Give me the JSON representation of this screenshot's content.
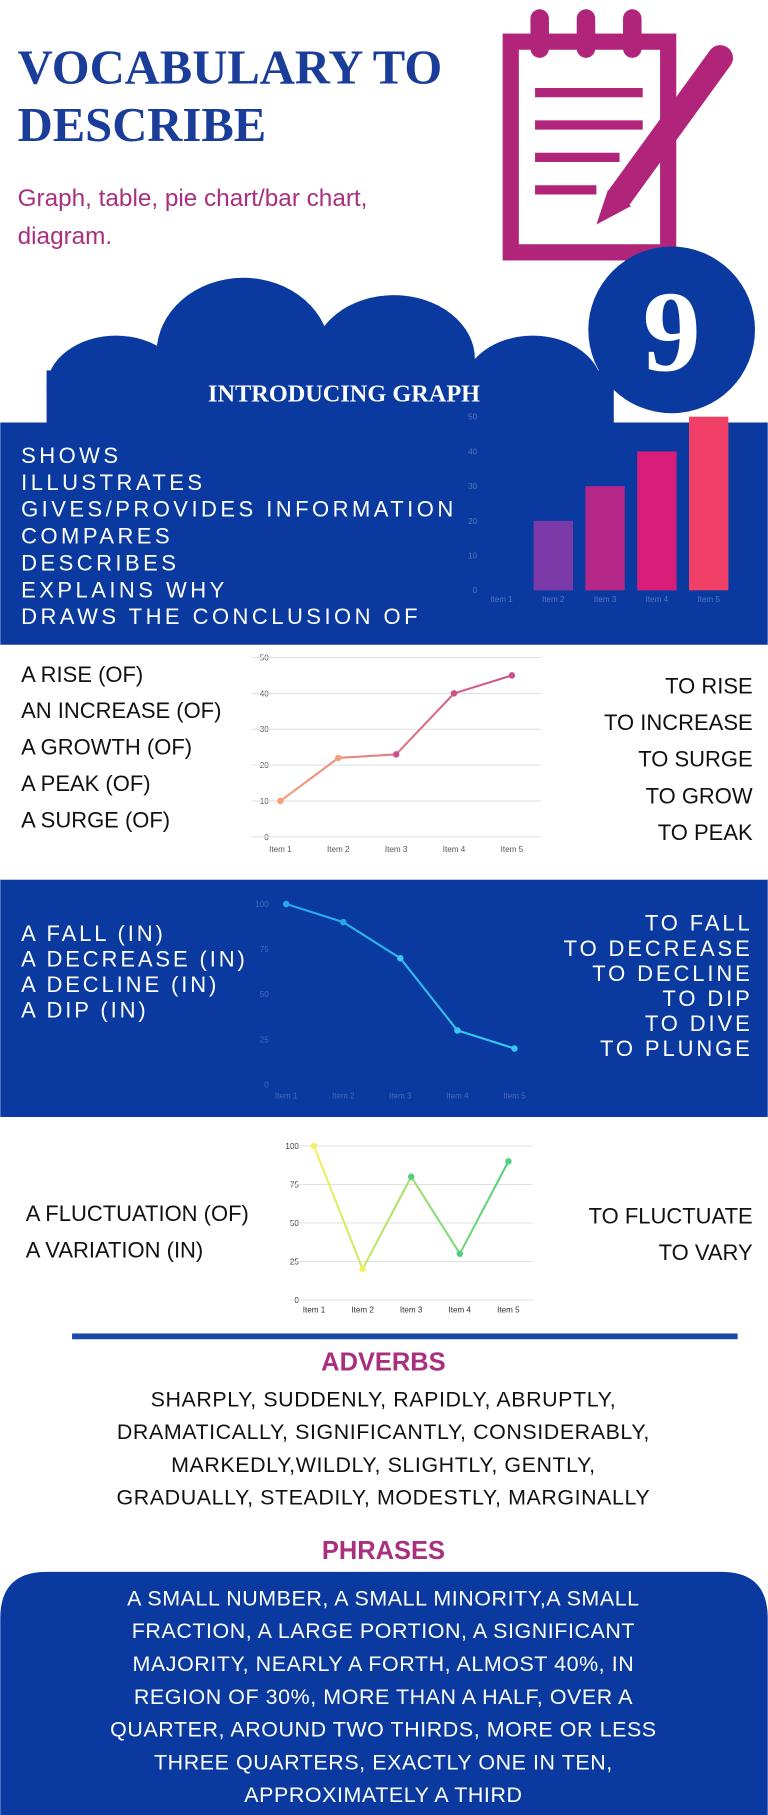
{
  "header": {
    "title": [
      "VOCABULARY TO",
      "DESCRIBE"
    ],
    "subtitle": [
      "Graph, table, pie chart/bar chart,",
      "diagram."
    ],
    "number": "9"
  },
  "intro": {
    "heading": "INTRODUCING GRAPH",
    "verbs": [
      "SHOWS",
      "ILLUSTRATES",
      "GIVES/PROVIDES INFORMATION",
      "COMPARES",
      "DESCRIBES",
      "EXPLAINS WHY",
      "DRAWS THE CONCLUSION OF"
    ]
  },
  "rise": {
    "nouns": [
      "A RISE (OF)",
      "AN INCREASE (OF)",
      "A GROWTH (OF)",
      "A PEAK (OF)",
      "A SURGE (OF)"
    ],
    "verbs": [
      "TO RISE",
      "TO INCREASE",
      "TO SURGE",
      "TO GROW",
      "TO PEAK"
    ]
  },
  "fall": {
    "nouns": [
      "A FALL (IN)",
      "A DECREASE (IN)",
      "A DECLINE (IN)",
      "A DIP (IN)"
    ],
    "verbs": [
      "TO FALL",
      "TO DECREASE",
      "TO DECLINE",
      "TO DIP",
      "TO DIVE",
      "TO PLUNGE"
    ]
  },
  "fluctuate": {
    "nouns": [
      "A FLUCTUATION (OF)",
      "A VARIATION (IN)"
    ],
    "verbs": [
      "TO FLUCTUATE",
      "TO VARY"
    ]
  },
  "adverbs": {
    "heading": "ADVERBS",
    "lines": [
      "SHARPLY, SUDDENLY, RAPIDLY, ABRUPTLY,",
      "DRAMATICALLY, SIGNIFICANTLY, CONSIDERABLY,",
      "MARKEDLY,WILDLY, SLIGHTLY, GENTLY,",
      "GRADUALLY, STEADILY, MODESTLY, MARGINALLY"
    ]
  },
  "phrases": {
    "heading": "PHRASES",
    "lines": [
      "A SMALL NUMBER, A SMALL MINORITY,A SMALL",
      "FRACTION, A LARGE PORTION, A SIGNIFICANT",
      "MAJORITY, NEARLY A  FORTH, ALMOST 40%, IN",
      "REGION OF 30%, MORE THAN A HALF, OVER A",
      "QUARTER, AROUND TWO THIRDS, MORE OR LESS",
      "THREE QUARTERS, EXACTLY ONE IN TEN,",
      "APPROXIMATELY A THIRD"
    ]
  },
  "charts": [
    {
      "type": "bar",
      "categories": [
        "Item 1",
        "Item 2",
        "Item 3",
        "Item 4",
        "Item 5"
      ],
      "values": [
        0,
        20,
        30,
        40,
        50
      ],
      "colors": [
        "#6a3aa8",
        "#7b3aa8",
        "#b5288a",
        "#d81e7a",
        "#f04068"
      ],
      "ylim": [
        0,
        50
      ],
      "yticks": [
        0,
        10,
        20,
        30,
        40,
        50
      ],
      "grid": false
    },
    {
      "type": "line",
      "categories": [
        "Item 1",
        "Item 2",
        "Item 3",
        "Item 4",
        "Item 5"
      ],
      "values": [
        10,
        22,
        23,
        40,
        45
      ],
      "colors": [
        "#f4a07a",
        "#c9508a"
      ],
      "ylim": [
        0,
        50
      ],
      "yticks": [
        0,
        10,
        20,
        30,
        40,
        50
      ],
      "grid": true
    },
    {
      "type": "line",
      "categories": [
        "Item 1",
        "Item 2",
        "Item 3",
        "Item 4",
        "Item 5"
      ],
      "values": [
        100,
        90,
        70,
        30,
        20
      ],
      "colors": [
        "#28a8e8",
        "#3ac8f0"
      ],
      "ylim": [
        0,
        100
      ],
      "yticks": [
        0,
        25,
        50,
        75,
        100
      ],
      "grid": false
    },
    {
      "type": "line",
      "categories": [
        "Item 1",
        "Item 2",
        "Item 3",
        "Item 4",
        "Item 5"
      ],
      "values": [
        100,
        20,
        80,
        30,
        90
      ],
      "colors": [
        "#f2f060",
        "#50d080"
      ],
      "ylim": [
        0,
        100
      ],
      "yticks": [
        0,
        25,
        50,
        75,
        100
      ],
      "grid": true
    }
  ]
}
